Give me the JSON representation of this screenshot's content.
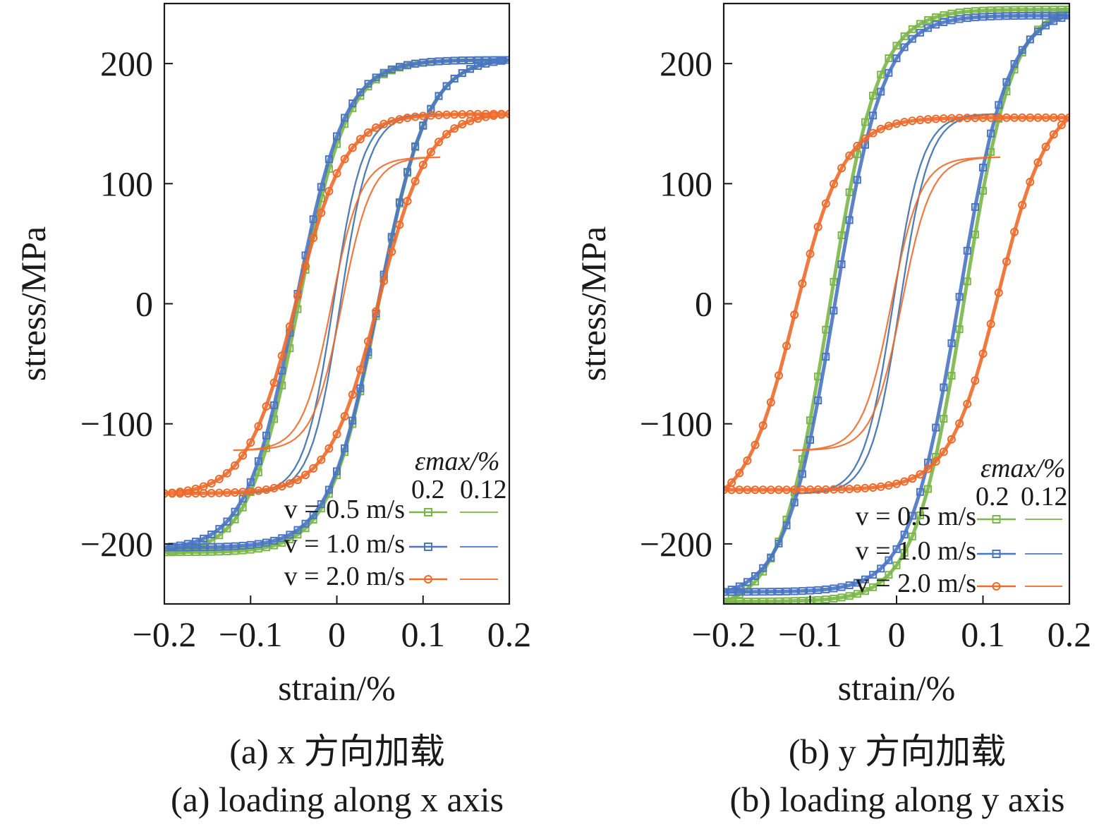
{
  "chart_data": [
    {
      "type": "line",
      "panel": "a",
      "xlabel": "strain/%",
      "ylabel": "stress/MPa",
      "xlim": [
        -0.2,
        0.2
      ],
      "ylim": [
        -250,
        250
      ],
      "xticks": [
        -0.2,
        -0.1,
        0,
        0.1,
        0.2
      ],
      "xtick_labels": [
        "−0.2",
        "−0.1",
        "0",
        "0.1",
        "0.2"
      ],
      "yticks": [
        -200,
        -100,
        0,
        100,
        200
      ],
      "ytick_labels": [
        "−200",
        "−100",
        "0",
        "100",
        "200"
      ],
      "grid": false,
      "legend_position": "bottom-right",
      "legend_title": "εmax/%",
      "legend_columns": [
        "0.2",
        "0.12"
      ],
      "series": [
        {
          "velocity": "v = 0.5 m/s",
          "color": "#7ab648",
          "marker": "square",
          "loops": [
            {
              "strain_amplitude": 0.2,
              "x_min": -0.2,
              "x_max": 0.2,
              "y_min": -207,
              "y_max": 203,
              "x_at_y0_up": -0.045,
              "x_at_y0_down": 0.048
            },
            {
              "strain_amplitude": 0.12,
              "x_min": -0.12,
              "x_max": 0.12,
              "y_min": -158,
              "y_max": 158,
              "x_at_y0_up": -0.004,
              "x_at_y0_down": 0.004
            }
          ]
        },
        {
          "velocity": "v = 1.0 m/s",
          "color": "#4a74c4",
          "marker": "square",
          "loops": [
            {
              "strain_amplitude": 0.2,
              "x_min": -0.2,
              "x_max": 0.2,
              "y_min": -203,
              "y_max": 203,
              "x_at_y0_up": -0.048,
              "x_at_y0_down": 0.048
            },
            {
              "strain_amplitude": 0.12,
              "x_min": -0.12,
              "x_max": 0.12,
              "y_min": -158,
              "y_max": 158,
              "x_at_y0_up": -0.004,
              "x_at_y0_down": 0.004
            }
          ]
        },
        {
          "velocity": "v = 2.0 m/s",
          "color": "#ee6a2b",
          "marker": "circle",
          "loops": [
            {
              "strain_amplitude": 0.2,
              "x_min": -0.2,
              "x_max": 0.2,
              "y_min": -158,
              "y_max": 158,
              "x_at_y0_up": -0.048,
              "x_at_y0_down": 0.048
            },
            {
              "strain_amplitude": 0.12,
              "x_min": -0.12,
              "x_max": 0.12,
              "y_min": -122,
              "y_max": 122,
              "x_at_y0_up": -0.006,
              "x_at_y0_down": 0.006
            }
          ]
        }
      ],
      "caption_cn": "(a) x 方向加载",
      "caption_en": "(a) loading along x axis"
    },
    {
      "type": "line",
      "panel": "b",
      "xlabel": "strain/%",
      "ylabel": "stress/MPa",
      "xlim": [
        -0.2,
        0.2
      ],
      "ylim": [
        -250,
        250
      ],
      "xticks": [
        -0.2,
        -0.1,
        0,
        0.1,
        0.2
      ],
      "xtick_labels": [
        "−0.2",
        "−0.1",
        "0",
        "0.1",
        "0.2"
      ],
      "yticks": [
        -200,
        -100,
        0,
        100,
        200
      ],
      "ytick_labels": [
        "−200",
        "−100",
        "0",
        "100",
        "200"
      ],
      "grid": false,
      "legend_position": "bottom-right",
      "legend_title": "εmax/%",
      "legend_columns": [
        "0.2",
        "0.12"
      ],
      "series": [
        {
          "velocity": "v = 0.5 m/s",
          "color": "#7ab648",
          "marker": "square",
          "loops": [
            {
              "strain_amplitude": 0.2,
              "x_min": -0.2,
              "x_max": 0.2,
              "y_min": -248,
              "y_max": 245,
              "x_at_y0_up": -0.078,
              "x_at_y0_down": 0.078
            },
            {
              "strain_amplitude": 0.12,
              "x_min": -0.12,
              "x_max": 0.12,
              "y_min": -158,
              "y_max": 158,
              "x_at_y0_up": -0.004,
              "x_at_y0_down": 0.004
            }
          ]
        },
        {
          "velocity": "v = 1.0 m/s",
          "color": "#4a74c4",
          "marker": "square",
          "loops": [
            {
              "strain_amplitude": 0.2,
              "x_min": -0.2,
              "x_max": 0.2,
              "y_min": -240,
              "y_max": 240,
              "x_at_y0_up": -0.072,
              "x_at_y0_down": 0.072
            },
            {
              "strain_amplitude": 0.12,
              "x_min": -0.12,
              "x_max": 0.12,
              "y_min": -158,
              "y_max": 158,
              "x_at_y0_up": -0.004,
              "x_at_y0_down": 0.004
            }
          ]
        },
        {
          "velocity": "v = 2.0 m/s",
          "color": "#ee6a2b",
          "marker": "circle",
          "loops": [
            {
              "strain_amplitude": 0.2,
              "x_min": -0.2,
              "x_max": 0.2,
              "y_min": -155,
              "y_max": 155,
              "x_at_y0_up": -0.118,
              "x_at_y0_down": 0.118
            },
            {
              "strain_amplitude": 0.12,
              "x_min": -0.12,
              "x_max": 0.12,
              "y_min": -122,
              "y_max": 122,
              "x_at_y0_up": -0.006,
              "x_at_y0_down": 0.006
            }
          ]
        }
      ],
      "caption_cn": "(b) y 方向加载",
      "caption_en": "(b) loading along y axis"
    }
  ]
}
